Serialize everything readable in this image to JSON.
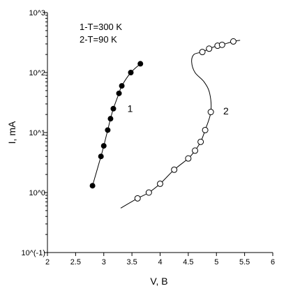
{
  "chart_data": {
    "type": "scatter",
    "title": "",
    "xlabel": "V, B",
    "ylabel": "I, mA",
    "xlim": [
      2,
      6
    ],
    "ylim_log10": [
      -1,
      3
    ],
    "y_scale": "log",
    "grid": false,
    "x_ticks": [
      2,
      2.5,
      3,
      3.5,
      4,
      4.5,
      5,
      5.5,
      6
    ],
    "x_tick_labels": [
      "2",
      "2.5",
      "3",
      "3.5",
      "4",
      "4.5",
      "5",
      "5.5",
      "6"
    ],
    "y_ticks": [
      0.1,
      1,
      10,
      100,
      1000
    ],
    "y_tick_labels": [
      "10^(-1)",
      "10^0",
      "10^1",
      "10^2",
      "10^3"
    ],
    "legend": {
      "position": "top-left",
      "entries": [
        "1-T=300 K",
        "2-T=90 K"
      ]
    },
    "series": [
      {
        "name": "1",
        "marker": "filled-circle",
        "points": [
          [
            2.8,
            1.3
          ],
          [
            2.95,
            4.0
          ],
          [
            3.0,
            6.0
          ],
          [
            3.07,
            11.0
          ],
          [
            3.12,
            17.0
          ],
          [
            3.17,
            25.0
          ],
          [
            3.27,
            45.0
          ],
          [
            3.32,
            60.0
          ],
          [
            3.48,
            100.0
          ],
          [
            3.65,
            140.0
          ]
        ],
        "curve": [
          [
            2.8,
            1.3
          ],
          [
            2.95,
            4.0
          ],
          [
            3.0,
            6.0
          ],
          [
            3.07,
            11.0
          ],
          [
            3.12,
            17.0
          ],
          [
            3.17,
            25.0
          ],
          [
            3.27,
            45.0
          ],
          [
            3.32,
            60.0
          ],
          [
            3.48,
            100.0
          ],
          [
            3.65,
            140.0
          ]
        ],
        "label_at": [
          3.42,
          22.0
        ]
      },
      {
        "name": "2",
        "marker": "open-circle",
        "points": [
          [
            3.6,
            0.8
          ],
          [
            3.8,
            1.0
          ],
          [
            4.0,
            1.4
          ],
          [
            4.25,
            2.4
          ],
          [
            4.5,
            3.7
          ],
          [
            4.62,
            5.0
          ],
          [
            4.72,
            7.0
          ],
          [
            4.8,
            11.0
          ],
          [
            4.9,
            22.0
          ],
          [
            4.75,
            220.0
          ],
          [
            4.87,
            250.0
          ],
          [
            5.02,
            280.0
          ],
          [
            5.1,
            290.0
          ],
          [
            5.3,
            330.0
          ]
        ],
        "curve": [
          [
            3.3,
            0.55
          ],
          [
            3.6,
            0.8
          ],
          [
            3.8,
            1.0
          ],
          [
            4.0,
            1.4
          ],
          [
            4.25,
            2.4
          ],
          [
            4.5,
            3.7
          ],
          [
            4.62,
            5.0
          ],
          [
            4.72,
            7.0
          ],
          [
            4.8,
            11.0
          ],
          [
            4.9,
            22.0
          ],
          [
            4.88,
            45.0
          ],
          [
            4.78,
            70.0
          ],
          [
            4.62,
            100.0
          ],
          [
            4.56,
            150.0
          ],
          [
            4.6,
            200.0
          ],
          [
            4.75,
            220.0
          ],
          [
            4.87,
            250.0
          ],
          [
            5.02,
            280.0
          ],
          [
            5.1,
            290.0
          ],
          [
            5.3,
            330.0
          ],
          [
            5.42,
            345.0
          ]
        ],
        "label_at": [
          5.12,
          20.0
        ]
      }
    ]
  }
}
